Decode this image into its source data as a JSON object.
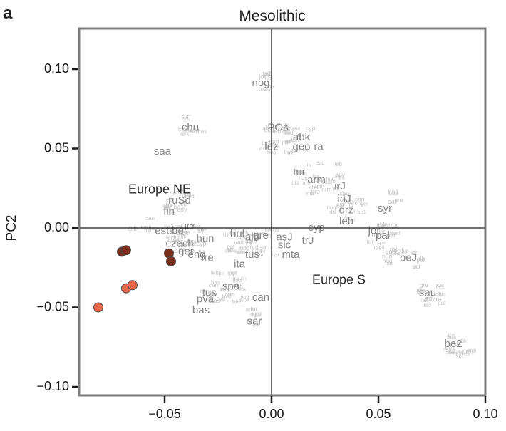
{
  "panel_letter": "a",
  "chart_data": {
    "type": "scatter",
    "title": "Mesolithic",
    "xlabel": "",
    "ylabel": "PC2",
    "xlim": [
      -0.088,
      0.1
    ],
    "ylim": [
      -0.105,
      0.125
    ],
    "x_ticks": [
      -0.05,
      0.0,
      0.05,
      0.1
    ],
    "x_tick_labels": [
      "−0.05",
      "0.00",
      "0.05",
      "0.10"
    ],
    "y_ticks": [
      -0.1,
      -0.05,
      0.0,
      0.05,
      0.1
    ],
    "y_tick_labels": [
      "−0.10",
      "−0.05",
      "0.00",
      "0.05",
      "0.10"
    ],
    "grid": false,
    "zero_lines": true,
    "region_annotations": [
      {
        "text": "Europe NE",
        "x": -0.067,
        "y": 0.024
      },
      {
        "text": "Europe S",
        "x": 0.019,
        "y": -0.033
      }
    ],
    "labels": [
      {
        "text": "nog",
        "x": -0.005,
        "y": 0.091
      },
      {
        "text": "chu",
        "x": -0.038,
        "y": 0.063
      },
      {
        "text": "saa",
        "x": -0.051,
        "y": 0.048
      },
      {
        "text": "POs",
        "x": 0.003,
        "y": 0.063
      },
      {
        "text": "abk",
        "x": 0.014,
        "y": 0.057
      },
      {
        "text": "lez",
        "x": 0.0,
        "y": 0.051
      },
      {
        "text": "geo",
        "x": 0.014,
        "y": 0.051
      },
      {
        "text": "ra",
        "x": 0.022,
        "y": 0.051
      },
      {
        "text": "tur",
        "x": 0.013,
        "y": 0.035
      },
      {
        "text": "arm",
        "x": 0.021,
        "y": 0.03
      },
      {
        "text": "irJ",
        "x": 0.032,
        "y": 0.026
      },
      {
        "text": "ruSd",
        "x": -0.043,
        "y": 0.017
      },
      {
        "text": "fin",
        "x": -0.048,
        "y": 0.01
      },
      {
        "text": "ioJ",
        "x": 0.034,
        "y": 0.018
      },
      {
        "text": "drz",
        "x": 0.035,
        "y": 0.011
      },
      {
        "text": "syr",
        "x": 0.053,
        "y": 0.012
      },
      {
        "text": "leb",
        "x": 0.035,
        "y": 0.004
      },
      {
        "text": "ucr",
        "x": -0.039,
        "y": 0.001
      },
      {
        "text": "ests",
        "x": -0.05,
        "y": -0.002
      },
      {
        "text": "ber",
        "x": -0.043,
        "y": -0.002
      },
      {
        "text": "cyp",
        "x": 0.021,
        "y": 0.0
      },
      {
        "text": "jor",
        "x": 0.048,
        "y": -0.002
      },
      {
        "text": "hun",
        "x": -0.031,
        "y": -0.007
      },
      {
        "text": "bul",
        "x": -0.016,
        "y": -0.004
      },
      {
        "text": "alb",
        "x": -0.009,
        "y": -0.006
      },
      {
        "text": "gre",
        "x": -0.005,
        "y": -0.005
      },
      {
        "text": "asJ",
        "x": 0.006,
        "y": -0.006
      },
      {
        "text": "trJ",
        "x": 0.017,
        "y": -0.008
      },
      {
        "text": "pal",
        "x": 0.052,
        "y": -0.005
      },
      {
        "text": "czech",
        "x": -0.043,
        "y": -0.01
      },
      {
        "text": "sic",
        "x": 0.006,
        "y": -0.011
      },
      {
        "text": "ger",
        "x": -0.04,
        "y": -0.015
      },
      {
        "text": "eng",
        "x": -0.035,
        "y": -0.017
      },
      {
        "text": "tus",
        "x": -0.009,
        "y": -0.017
      },
      {
        "text": "mta",
        "x": 0.009,
        "y": -0.017
      },
      {
        "text": "fre",
        "x": -0.03,
        "y": -0.019
      },
      {
        "text": "beJ",
        "x": 0.064,
        "y": -0.019
      },
      {
        "text": "ita",
        "x": -0.015,
        "y": -0.023
      },
      {
        "text": "spa",
        "x": -0.019,
        "y": -0.037
      },
      {
        "text": "sau",
        "x": 0.073,
        "y": -0.041
      },
      {
        "text": "tus",
        "x": -0.029,
        "y": -0.041
      },
      {
        "text": "pva",
        "x": -0.031,
        "y": -0.045
      },
      {
        "text": "can",
        "x": -0.005,
        "y": -0.044
      },
      {
        "text": "bas",
        "x": -0.033,
        "y": -0.052
      },
      {
        "text": "sar",
        "x": -0.008,
        "y": -0.059
      },
      {
        "text": "be2",
        "x": 0.085,
        "y": -0.073
      }
    ],
    "series": [
      {
        "color": "#7a2e1c",
        "points": [
          [
            -0.07,
            -0.015
          ],
          [
            -0.068,
            -0.014
          ],
          [
            -0.048,
            -0.016
          ],
          [
            -0.047,
            -0.021
          ]
        ]
      },
      {
        "color": "#e8674a",
        "points": [
          [
            -0.081,
            -0.05
          ],
          [
            -0.068,
            -0.038
          ],
          [
            -0.065,
            -0.036
          ]
        ]
      }
    ]
  }
}
